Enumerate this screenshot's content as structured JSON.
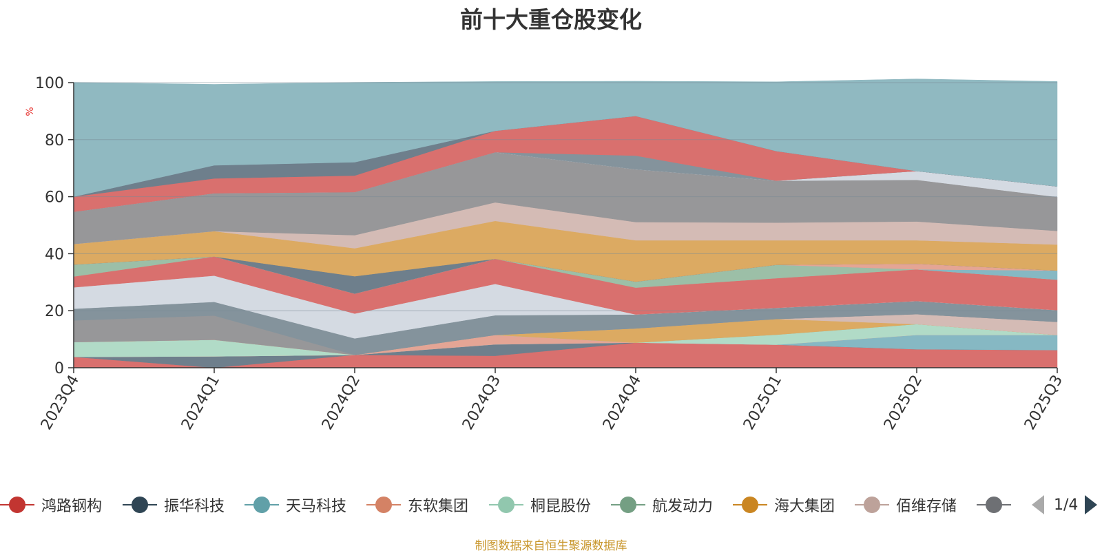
{
  "title": "前十大重仓股变化",
  "source_note": "制图数据来自恒生聚源数据库",
  "legend_page": "1/4",
  "chart_data": {
    "type": "area",
    "stacked": true,
    "ylabel": "%",
    "ylim": [
      0,
      100
    ],
    "yticks": [
      0,
      20,
      40,
      60,
      80,
      100
    ],
    "categories": [
      "2023Q4",
      "2024Q1",
      "2024Q2",
      "2024Q3",
      "2024Q4",
      "2025Q1",
      "2025Q2",
      "2025Q3"
    ],
    "grid": true,
    "legend_position": "bottom",
    "series": [
      {
        "name": "鸿路钢构",
        "color": "#d9706e",
        "values": [
          3.8,
          0,
          4.5,
          4.2,
          8.8,
          8.1,
          6.5,
          6.2
        ]
      },
      {
        "name": "振华科技",
        "color": "#6e7f8c",
        "values": [
          0,
          4,
          0,
          4,
          0,
          0,
          0,
          0
        ]
      },
      {
        "name": "天马科技",
        "color": "#86b8c3",
        "values": [
          0,
          0,
          0,
          0,
          0,
          0,
          5,
          5.3
        ]
      },
      {
        "name": "东软集团",
        "color": "#e4a595",
        "values": [
          0,
          0,
          0,
          3.3,
          0,
          0,
          0,
          0
        ]
      },
      {
        "name": "桐昆股份",
        "color": "#b1dbc7",
        "values": [
          5.2,
          5.8,
          0,
          0,
          0,
          3.5,
          3.8,
          0
        ]
      },
      {
        "name": "航发动力",
        "color": "#9cbfa7",
        "values": [
          0,
          0,
          0,
          0,
          0,
          0,
          0,
          0
        ]
      },
      {
        "name": "海大集团",
        "color": "#dcaa62",
        "values": [
          0,
          0,
          0,
          0,
          5,
          5.5,
          0,
          0
        ]
      },
      {
        "name": "佰维存储",
        "color": "#d4bbb5",
        "values": [
          0,
          0,
          0,
          0,
          0,
          0,
          3.5,
          4.6
        ]
      },
      {
        "name": "",
        "color": "#979799",
        "values": [
          7.6,
          8.5,
          0,
          0,
          0,
          0,
          0,
          0
        ]
      },
      {
        "name": "",
        "color": "#84939c",
        "values": [
          4.1,
          4.8,
          5.8,
          6.9,
          4.9,
          3.9,
          4.6,
          4.1
        ]
      },
      {
        "name": "",
        "color": "#d4dae2",
        "values": [
          7.5,
          9.2,
          8.7,
          11,
          0,
          0,
          0,
          0
        ]
      },
      {
        "name": "",
        "color": "#d9706e",
        "values": [
          3.8,
          6.7,
          7,
          8.8,
          9.4,
          10.4,
          11.1,
          10.7
        ]
      },
      {
        "name": "",
        "color": "#9cbfa7",
        "values": [
          4.2,
          0,
          0,
          0,
          2.1,
          4.7,
          0,
          0
        ]
      },
      {
        "name": "",
        "color": "#86b8c3",
        "values": [
          0,
          0,
          0,
          0,
          0,
          0,
          0,
          3.2
        ]
      },
      {
        "name": "",
        "color": "#e4a595",
        "values": [
          0,
          0,
          0,
          0,
          0,
          0,
          2,
          0
        ]
      },
      {
        "name": "",
        "color": "#6e7f8c",
        "values": [
          0,
          0,
          6.1,
          0,
          0,
          0,
          0,
          0
        ]
      },
      {
        "name": "",
        "color": "#dcaa62",
        "values": [
          7.2,
          8.9,
          9.8,
          13.3,
          14.5,
          8.6,
          8.2,
          9.1
        ]
      },
      {
        "name": "",
        "color": "#d4bbb5",
        "values": [
          0,
          0,
          4.6,
          6.5,
          6.4,
          6.2,
          6.6,
          4.8
        ]
      },
      {
        "name": "",
        "color": "#979799",
        "values": [
          11.3,
          13.3,
          15.1,
          17.6,
          18.5,
          14.7,
          14.6,
          11.9
        ]
      },
      {
        "name": "",
        "color": "#d4dae2",
        "values": [
          0,
          0,
          0,
          0,
          0,
          0,
          3.1,
          3.7
        ]
      },
      {
        "name": "",
        "color": "#84939c",
        "values": [
          0,
          0,
          0,
          0,
          4.8,
          0,
          0,
          0
        ]
      },
      {
        "name": "",
        "color": "#d9706e",
        "values": [
          5.3,
          5.2,
          5.8,
          7.5,
          13.9,
          10.4,
          0,
          0
        ]
      },
      {
        "name": "",
        "color": "#6e7f8c",
        "values": [
          0,
          4.6,
          4.7,
          0,
          0,
          0,
          0,
          0
        ]
      },
      {
        "name": "",
        "color": "#90b9c1",
        "values": [
          40.1,
          28.4,
          28.0,
          17.3,
          12.2,
          24.3,
          32.3,
          36.8
        ]
      }
    ]
  }
}
